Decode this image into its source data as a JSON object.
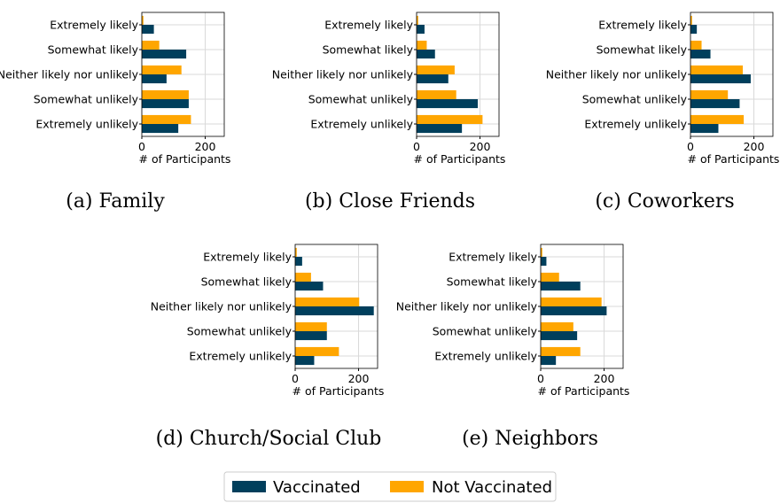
{
  "colors": {
    "vaccinated": "#003f5c",
    "not_vaccinated": "#ffa600",
    "grid": "#d9d9d9"
  },
  "legend": [
    {
      "series": "Vaccinated",
      "label": "Vaccinated"
    },
    {
      "series": "Not Vaccinated",
      "label": "Not Vaccinated"
    }
  ],
  "chart_data": [
    {
      "type": "bar",
      "orientation": "horizontal",
      "caption": "(a) Family",
      "categories": [
        "Extremely likely",
        "Somewhat likely",
        "Neither likely nor unlikely",
        "Somewhat unlikely",
        "Extremely unlikely"
      ],
      "series": [
        {
          "name": "Vaccinated",
          "values": [
            38,
            140,
            78,
            148,
            115
          ]
        },
        {
          "name": "Not Vaccinated",
          "values": [
            5,
            55,
            125,
            148,
            155
          ]
        }
      ],
      "xlabel": "# of Participants",
      "xticks": [
        0,
        200
      ],
      "xlim": [
        0,
        260
      ],
      "grid": true
    },
    {
      "type": "bar",
      "orientation": "horizontal",
      "caption": "(b) Close Friends",
      "categories": [
        "Extremely likely",
        "Somewhat likely",
        "Neither likely nor unlikely",
        "Somewhat unlikely",
        "Extremely unlikely"
      ],
      "series": [
        {
          "name": "Vaccinated",
          "values": [
            25,
            58,
            100,
            193,
            143
          ]
        },
        {
          "name": "Not Vaccinated",
          "values": [
            5,
            32,
            120,
            125,
            208
          ]
        }
      ],
      "xlabel": "# of Participants",
      "xticks": [
        0,
        200
      ],
      "xlim": [
        0,
        260
      ],
      "grid": true
    },
    {
      "type": "bar",
      "orientation": "horizontal",
      "caption": "(c) Coworkers",
      "categories": [
        "Extremely likely",
        "Somewhat likely",
        "Neither likely nor unlikely",
        "Somewhat unlikely",
        "Extremely unlikely"
      ],
      "series": [
        {
          "name": "Vaccinated",
          "values": [
            20,
            63,
            190,
            155,
            88
          ]
        },
        {
          "name": "Not Vaccinated",
          "values": [
            5,
            35,
            165,
            118,
            168
          ]
        }
      ],
      "xlabel": "# of Participants",
      "xticks": [
        0,
        200
      ],
      "xlim": [
        0,
        260
      ],
      "grid": true
    },
    {
      "type": "bar",
      "orientation": "horizontal",
      "caption": "(d) Church/Social Club",
      "categories": [
        "Extremely likely",
        "Somewhat likely",
        "Neither likely nor unlikely",
        "Somewhat unlikely",
        "Extremely unlikely"
      ],
      "series": [
        {
          "name": "Vaccinated",
          "values": [
            22,
            88,
            248,
            100,
            60
          ]
        },
        {
          "name": "Not Vaccinated",
          "values": [
            5,
            50,
            202,
            100,
            138
          ]
        }
      ],
      "xlabel": "# of Participants",
      "xticks": [
        0,
        200
      ],
      "xlim": [
        0,
        260
      ],
      "grid": true
    },
    {
      "type": "bar",
      "orientation": "horizontal",
      "caption": "(e) Neighbors",
      "categories": [
        "Extremely likely",
        "Somewhat likely",
        "Neither likely nor unlikely",
        "Somewhat unlikely",
        "Extremely unlikely"
      ],
      "series": [
        {
          "name": "Vaccinated",
          "values": [
            18,
            125,
            208,
            115,
            48
          ]
        },
        {
          "name": "Not Vaccinated",
          "values": [
            5,
            58,
            192,
            103,
            125
          ]
        }
      ],
      "xlabel": "# of Participants",
      "xticks": [
        0,
        200
      ],
      "xlim": [
        0,
        260
      ],
      "grid": true
    }
  ]
}
